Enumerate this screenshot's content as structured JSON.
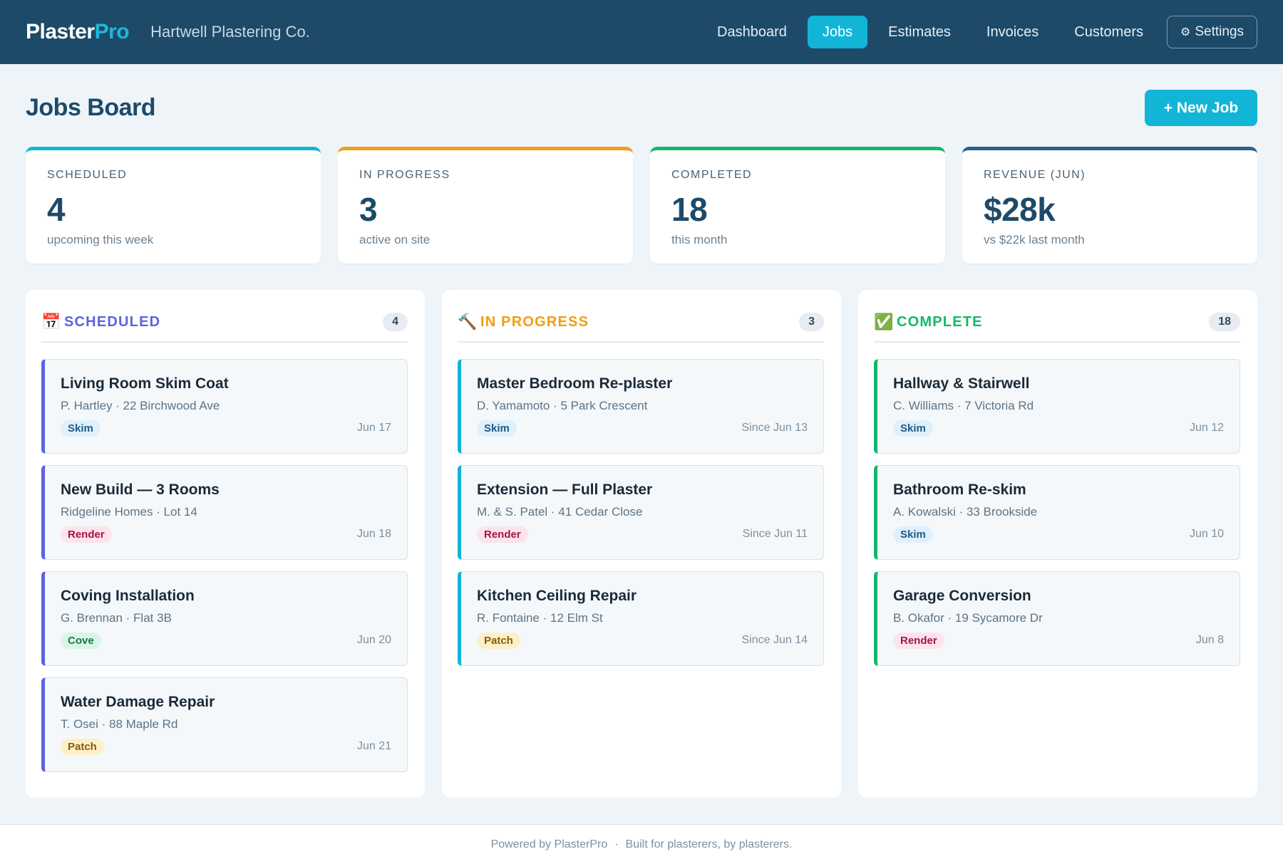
{
  "header": {
    "brand_main": "Plaster",
    "brand_accent": "Pro",
    "company": "Hartwell Plastering Co.",
    "nav": [
      {
        "label": "Dashboard",
        "active": false
      },
      {
        "label": "Jobs",
        "active": true
      },
      {
        "label": "Estimates",
        "active": false
      },
      {
        "label": "Invoices",
        "active": false
      },
      {
        "label": "Customers",
        "active": false
      }
    ],
    "settings_label": "Settings",
    "settings_icon": "gear-icon"
  },
  "page": {
    "title": "Jobs Board",
    "new_job_label": "+ New Job"
  },
  "stats": [
    {
      "label": "Scheduled",
      "value": "4",
      "sub": "upcoming this week",
      "color": "#13b5d7"
    },
    {
      "label": "In Progress",
      "value": "3",
      "sub": "active on site",
      "color": "#f29d12"
    },
    {
      "label": "Completed",
      "value": "18",
      "sub": "this month",
      "color": "#14b86a"
    },
    {
      "label": "Revenue (Jun)",
      "value": "$28k",
      "sub": "vs $22k last month",
      "color": "#2f5f8a"
    }
  ],
  "columns": [
    {
      "title": "SCHEDULED",
      "icon": "calendar-icon",
      "count": "4",
      "color": "#5b63e0",
      "cards": [
        {
          "title": "Living Room Skim Coat",
          "meta": "P. Hartley · 22 Birchwood Ave",
          "tag": "Skim",
          "date": "Jun 17"
        },
        {
          "title": "New Build — 3 Rooms",
          "meta": "Ridgeline Homes · Lot 14",
          "tag": "Render",
          "date": "Jun 18"
        },
        {
          "title": "Coving Installation",
          "meta": "G. Brennan · Flat 3B",
          "tag": "Cove",
          "date": "Jun 20"
        },
        {
          "title": "Water Damage Repair",
          "meta": "T. Osei · 88 Maple Rd",
          "tag": "Patch",
          "date": "Jun 21"
        }
      ]
    },
    {
      "title": "IN PROGRESS",
      "icon": "hammer-icon",
      "count": "3",
      "color": "#f29d12",
      "card_border": "#13b5d7",
      "cards": [
        {
          "title": "Master Bedroom Re-plaster",
          "meta": "D. Yamamoto · 5 Park Crescent",
          "tag": "Skim",
          "date": "Since Jun 13"
        },
        {
          "title": "Extension — Full Plaster",
          "meta": "M. & S. Patel · 41 Cedar Close",
          "tag": "Render",
          "date": "Since Jun 11"
        },
        {
          "title": "Kitchen Ceiling Repair",
          "meta": "R. Fontaine · 12 Elm St",
          "tag": "Patch",
          "date": "Since Jun 14"
        }
      ]
    },
    {
      "title": "COMPLETE",
      "icon": "checkmark-icon",
      "count": "18",
      "color": "#14b86a",
      "cards": [
        {
          "title": "Hallway & Stairwell",
          "meta": "C. Williams · 7 Victoria Rd",
          "tag": "Skim",
          "date": "Jun 12"
        },
        {
          "title": "Bathroom Re-skim",
          "meta": "A. Kowalski · 33 Brookside",
          "tag": "Skim",
          "date": "Jun 10"
        },
        {
          "title": "Garage Conversion",
          "meta": "B. Okafor · 19 Sycamore Dr",
          "tag": "Render",
          "date": "Jun 8"
        }
      ]
    }
  ],
  "footer": {
    "powered": "Powered by PlasterPro",
    "separator": "·",
    "tagline": "Built for plasterers, by plasterers."
  }
}
